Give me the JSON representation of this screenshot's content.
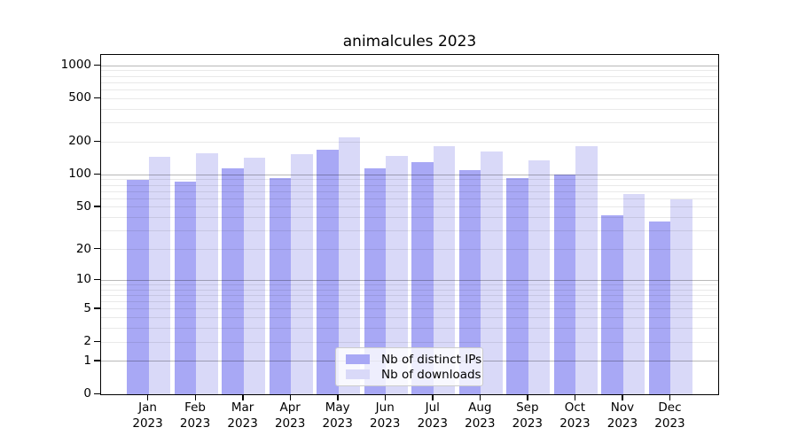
{
  "figure": {
    "title": "animalcules 2023",
    "background": "#ffffff"
  },
  "legend": {
    "position": "lower-center-inside",
    "items": [
      {
        "label": "Nb of distinct IPs",
        "color": "#a8a8f5"
      },
      {
        "label": "Nb of downloads",
        "color": "#d9d9f8"
      }
    ]
  },
  "chart_data": {
    "type": "bar",
    "title": "animalcules 2023",
    "categories": [
      "Jan 2023",
      "Feb 2023",
      "Mar 2023",
      "Apr 2023",
      "May 2023",
      "Jun 2023",
      "Jul 2023",
      "Aug 2023",
      "Sep 2023",
      "Oct 2023",
      "Nov 2023",
      "Dec 2023"
    ],
    "x_months": [
      "Jan",
      "Feb",
      "Mar",
      "Apr",
      "May",
      "Jun",
      "Jul",
      "Aug",
      "Sep",
      "Oct",
      "Nov",
      "Dec"
    ],
    "x_year": "2023",
    "series": [
      {
        "name": "Nb of distinct IPs",
        "color": "#a8a8f5",
        "values": [
          89,
          87,
          114,
          93,
          170,
          114,
          130,
          110,
          94,
          100,
          42,
          37
        ]
      },
      {
        "name": "Nb of downloads",
        "color": "#d9d9f8",
        "values": [
          146,
          158,
          144,
          154,
          222,
          150,
          185,
          163,
          136,
          182,
          67,
          59
        ]
      }
    ],
    "xlabel": "",
    "ylabel": "",
    "yscale": "log1p",
    "ylim": [
      0,
      1255
    ],
    "y_ticks": [
      0,
      1,
      2,
      5,
      10,
      20,
      50,
      100,
      200,
      500,
      1000
    ],
    "major_grid_values": [
      1,
      10,
      100,
      1000
    ],
    "grid": true,
    "legend_position": "lower center"
  },
  "colors": {
    "series_dark": "#a8a8f5",
    "series_light": "#d9d9f8",
    "spine": "#000000",
    "minor_grid": "#ebebeb",
    "major_grid": "#bdbdbd",
    "legend_border": "#cccccc"
  }
}
